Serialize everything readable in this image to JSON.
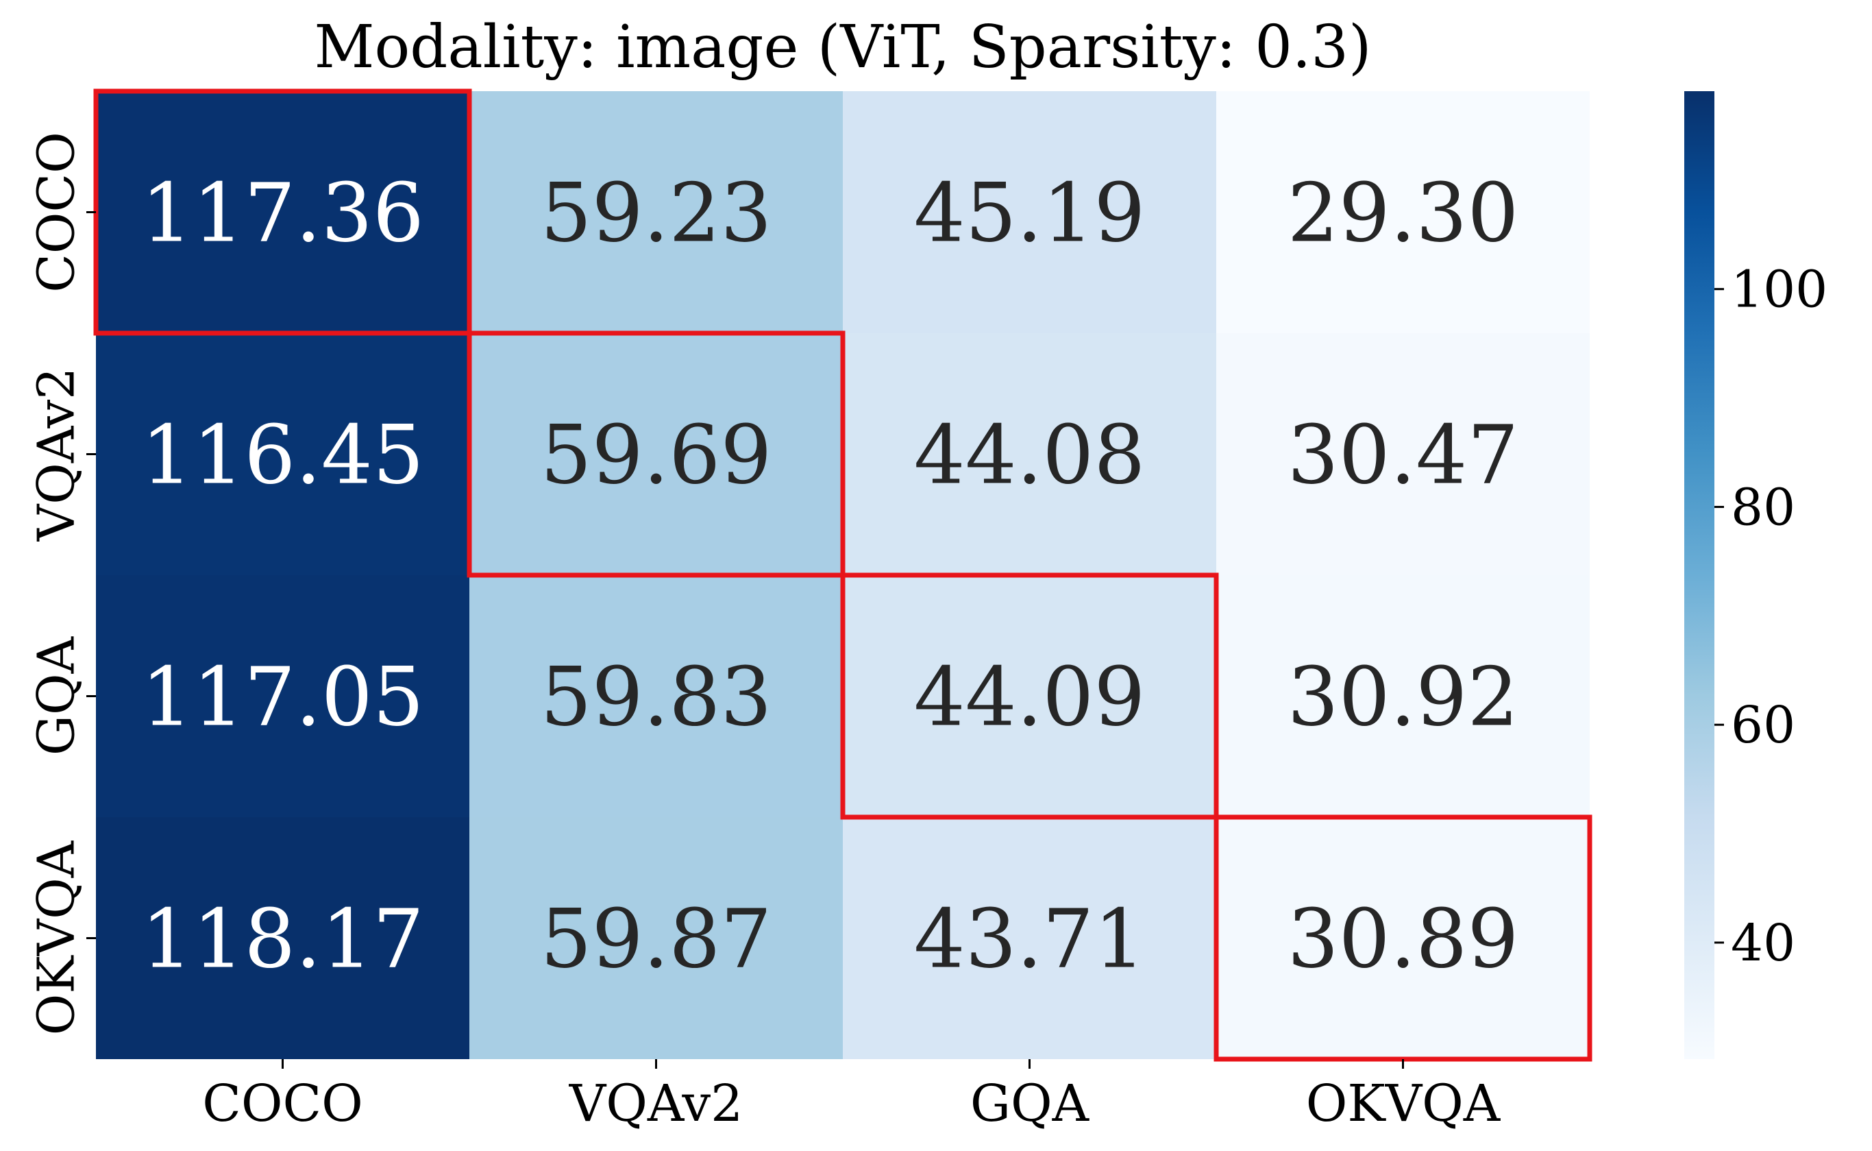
{
  "chart_data": {
    "type": "heatmap",
    "title": "Modality: image (ViT, Sparsity: 0.3)",
    "rows": [
      "COCO",
      "VQAv2",
      "GQA",
      "OKVQA"
    ],
    "columns": [
      "COCO",
      "VQAv2",
      "GQA",
      "OKVQA"
    ],
    "values": [
      [
        117.36,
        59.23,
        45.19,
        29.3
      ],
      [
        116.45,
        59.69,
        44.08,
        30.47
      ],
      [
        117.05,
        59.83,
        44.09,
        30.92
      ],
      [
        118.17,
        59.87,
        43.71,
        30.89
      ]
    ],
    "value_format": "2 decimals",
    "highlighted_cells": [
      [
        0,
        0
      ],
      [
        1,
        1
      ],
      [
        2,
        2
      ],
      [
        3,
        3
      ]
    ],
    "highlight_color": "#e8141a",
    "colormap": "Blues",
    "colorbar": {
      "range": [
        29.3,
        118.17
      ],
      "ticks": [
        40,
        60,
        80,
        100
      ]
    },
    "text_colors": {
      "dark_cell": "#ffffff",
      "light_cell": "#262626"
    }
  }
}
